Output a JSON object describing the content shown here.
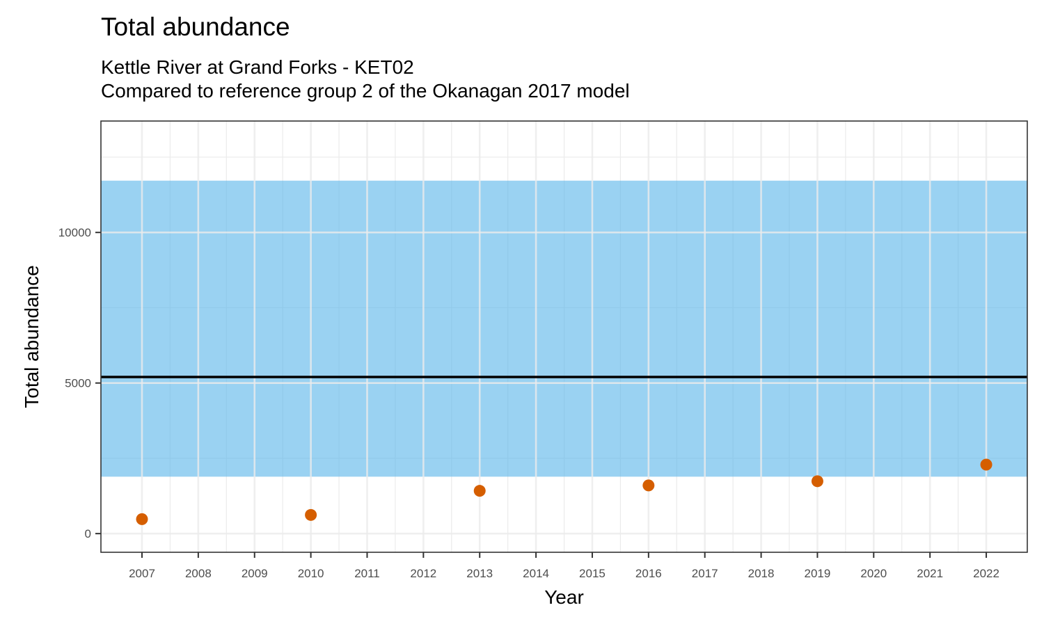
{
  "chart_data": {
    "type": "scatter",
    "title": "Total abundance",
    "subtitle_lines": [
      "Kettle River at Grand Forks - KET02",
      "Compared to reference group 2 of the Okanagan 2017 model"
    ],
    "xlabel": "Year",
    "ylabel": "Total abundance",
    "categories": [
      "2007",
      "2008",
      "2009",
      "2010",
      "2011",
      "2012",
      "2013",
      "2014",
      "2015",
      "2016",
      "2017",
      "2018",
      "2019",
      "2020",
      "2021",
      "2022"
    ],
    "points": [
      {
        "x": "2007",
        "y": 480
      },
      {
        "x": "2010",
        "y": 620
      },
      {
        "x": "2013",
        "y": 1420
      },
      {
        "x": "2016",
        "y": 1600
      },
      {
        "x": "2019",
        "y": 1740
      },
      {
        "x": "2022",
        "y": 2290
      }
    ],
    "reference_mean": 5200,
    "reference_band": [
      1890,
      11720
    ],
    "ylim": [
      -620,
      13700
    ],
    "yticks": [
      0,
      5000,
      10000
    ],
    "grid": true,
    "colors": {
      "points": "#d55e00",
      "band": "#56b4e9",
      "mean_line": "#000000",
      "grid": "#ebebeb",
      "panel_border": "#333333"
    }
  }
}
